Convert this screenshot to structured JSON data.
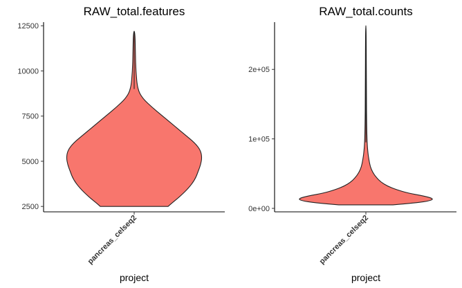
{
  "chart_data": [
    {
      "type": "violin",
      "title": "RAW_total.features",
      "xlabel": "project",
      "ylabel": "",
      "categories": [
        "pancreas_celseq2"
      ],
      "fill_color": "#f8766d",
      "ylim": [
        2200,
        12700
      ],
      "yticks": [
        2500,
        5000,
        7500,
        10000,
        12500
      ],
      "ytick_labels": [
        "2500",
        "5000",
        "7500",
        "10000",
        "12500"
      ],
      "grid": false,
      "legend": "none",
      "value_range": [
        2500,
        12200
      ],
      "density_profile": [
        {
          "y": 2500,
          "width": 0.5
        },
        {
          "y": 2700,
          "width": 0.56
        },
        {
          "y": 3000,
          "width": 0.66
        },
        {
          "y": 3500,
          "width": 0.8
        },
        {
          "y": 4000,
          "width": 0.9
        },
        {
          "y": 4500,
          "width": 0.95
        },
        {
          "y": 4800,
          "width": 0.98
        },
        {
          "y": 5200,
          "width": 1.0
        },
        {
          "y": 5600,
          "width": 0.98
        },
        {
          "y": 6000,
          "width": 0.9
        },
        {
          "y": 6500,
          "width": 0.74
        },
        {
          "y": 7000,
          "width": 0.58
        },
        {
          "y": 7500,
          "width": 0.42
        },
        {
          "y": 8000,
          "width": 0.26
        },
        {
          "y": 8500,
          "width": 0.12
        },
        {
          "y": 9000,
          "width": 0.05
        },
        {
          "y": 10000,
          "width": 0.025
        },
        {
          "y": 11000,
          "width": 0.018
        },
        {
          "y": 12200,
          "width": 0.012
        }
      ]
    },
    {
      "type": "violin",
      "title": "RAW_total.counts",
      "xlabel": "project",
      "ylabel": "",
      "categories": [
        "pancreas_celseq2"
      ],
      "fill_color": "#f8766d",
      "ylim": [
        -5000,
        268000
      ],
      "yticks": [
        0,
        100000,
        200000
      ],
      "ytick_labels": [
        "0e+00",
        "1e+05",
        "2e+05"
      ],
      "grid": false,
      "legend": "none",
      "value_range": [
        5000,
        263000
      ],
      "density_profile": [
        {
          "y": 5000,
          "width": 0.4
        },
        {
          "y": 8000,
          "width": 0.75
        },
        {
          "y": 11000,
          "width": 0.95
        },
        {
          "y": 14000,
          "width": 1.0
        },
        {
          "y": 18000,
          "width": 0.85
        },
        {
          "y": 22000,
          "width": 0.62
        },
        {
          "y": 27000,
          "width": 0.45
        },
        {
          "y": 32000,
          "width": 0.32
        },
        {
          "y": 38000,
          "width": 0.22
        },
        {
          "y": 45000,
          "width": 0.15
        },
        {
          "y": 52000,
          "width": 0.1
        },
        {
          "y": 60000,
          "width": 0.065
        },
        {
          "y": 70000,
          "width": 0.045
        },
        {
          "y": 80000,
          "width": 0.03
        },
        {
          "y": 95000,
          "width": 0.018
        },
        {
          "y": 120000,
          "width": 0.012
        },
        {
          "y": 160000,
          "width": 0.008
        },
        {
          "y": 263000,
          "width": 0.005
        }
      ]
    }
  ]
}
